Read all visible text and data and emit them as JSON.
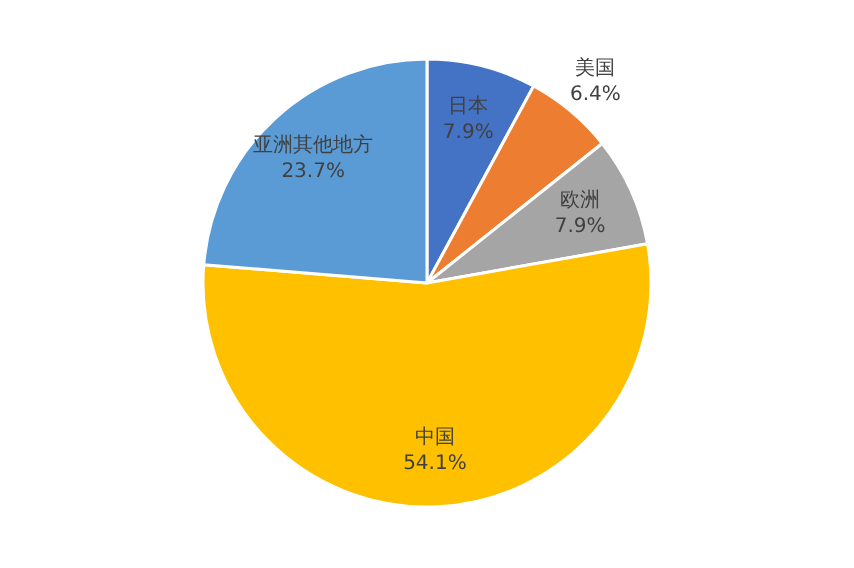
{
  "chart_data": {
    "type": "pie",
    "categories": [
      "日本",
      "美国",
      "欧洲",
      "中国",
      "亚洲其他地方"
    ],
    "values": [
      7.9,
      6.4,
      7.9,
      54.1,
      23.7
    ],
    "value_labels": [
      "7.9%",
      "6.4%",
      "7.9%",
      "54.1%",
      "23.7%"
    ],
    "colors": [
      "#4472c4",
      "#ed7d31",
      "#a5a5a5",
      "#ffc000",
      "#5b9bd5"
    ]
  }
}
